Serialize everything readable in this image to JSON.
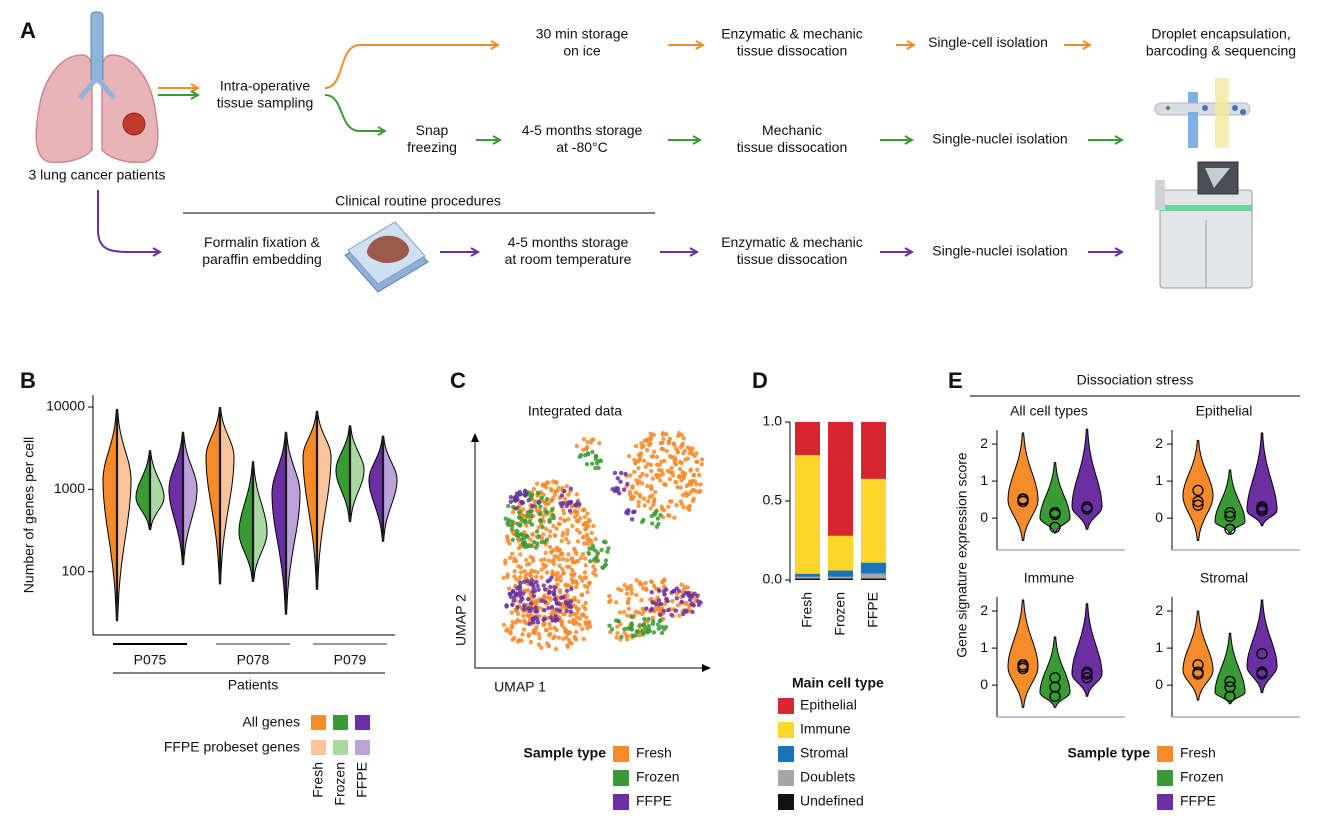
{
  "panel_a": {
    "label": "A",
    "patients": "3 lung cancer patients",
    "sampling": [
      "Intra-operative",
      "tissue sampling"
    ],
    "fresh_steps": [
      [
        "30 min storage",
        "on ice"
      ],
      [
        "Enzymatic & mechanic",
        "tissue dissocation"
      ],
      [
        "Single-cell isolation"
      ],
      [
        "Droplet encapsulation,",
        "barcoding & sequencing"
      ]
    ],
    "frozen_steps": [
      [
        "Snap",
        "freezing"
      ],
      [
        "4-5 months storage",
        "at -80°C"
      ],
      [
        "Mechanic",
        "tissue dissocation"
      ],
      [
        "Single-nuclei isolation"
      ]
    ],
    "clinical_label": "Clinical routine procedures",
    "ffpe_steps": [
      [
        "Formalin fixation &",
        "paraffin embedding"
      ],
      [
        "4-5 months storage",
        "at room temperature"
      ],
      [
        "Enzymatic & mechanic",
        "tissue dissocation"
      ],
      [
        "Single-nuclei isolation"
      ]
    ]
  },
  "chart_data": [
    {
      "type": "violin",
      "panel": "B",
      "ylabel": "Number of genes per cell",
      "xlabel": "Patients",
      "log_scale": true,
      "ylim": [
        17,
        14000
      ],
      "yticks": [
        100,
        1000,
        10000
      ],
      "categories": [
        "P075",
        "P078",
        "P079"
      ],
      "legend_rows": [
        "All genes",
        "FFPE probeset genes"
      ],
      "series": [
        {
          "name": "Fresh",
          "color": "#f68b2a",
          "light_color": "#fbc59c",
          "values": [
            [
              25,
              1300,
              9500
            ],
            [
              70,
              2500,
              10000
            ],
            [
              60,
              2500,
              9000
            ]
          ]
        },
        {
          "name": "Frozen",
          "color": "#3a9b35",
          "light_color": "#a9d8a0",
          "values": [
            [
              320,
              800,
              3000
            ],
            [
              75,
              300,
              2200
            ],
            [
              400,
              1700,
              6000
            ]
          ]
        },
        {
          "name": "FFPE",
          "color": "#6b2fa3",
          "light_color": "#bba3da",
          "values": [
            [
              120,
              1000,
              5000
            ],
            [
              30,
              900,
              5000
            ],
            [
              230,
              1300,
              4500
            ]
          ]
        }
      ]
    },
    {
      "type": "scatter",
      "panel": "C",
      "title": "Integrated data",
      "xlabel": "UMAP 1",
      "ylabel": "UMAP 2",
      "legend_title": "Sample type",
      "series": [
        {
          "name": "Fresh",
          "color": "#f68b2a"
        },
        {
          "name": "Frozen",
          "color": "#3a9b35"
        },
        {
          "name": "FFPE",
          "color": "#6b2fa3"
        }
      ]
    },
    {
      "type": "bar",
      "stacked": true,
      "panel": "D",
      "categories": [
        "Fresh",
        "Frozen",
        "FFPE"
      ],
      "ylim": [
        0,
        1
      ],
      "yticks": [
        {
          "value": 0,
          "label": "0.0"
        },
        {
          "value": 0.5,
          "label": "0.5"
        },
        {
          "value": 1,
          "label": "1.0"
        }
      ],
      "legend_title": "Main cell type",
      "series": [
        {
          "name": "Epithelial",
          "color": "#d7262f",
          "values": [
            0.21,
            0.72,
            0.36
          ]
        },
        {
          "name": "Immune",
          "color": "#fdd52b",
          "values": [
            0.75,
            0.22,
            0.53
          ]
        },
        {
          "name": "Stromal",
          "color": "#1b73b8",
          "values": [
            0.02,
            0.04,
            0.07
          ]
        },
        {
          "name": "Doublets",
          "color": "#a6a6a6",
          "values": [
            0.01,
            0.01,
            0.03
          ]
        },
        {
          "name": "Undefined",
          "color": "#111111",
          "values": [
            0.01,
            0.01,
            0.01
          ]
        }
      ]
    },
    {
      "type": "violin",
      "panel": "E",
      "title": "Dissociation stress",
      "ylabel": "Gene signature expression score",
      "ylim": [
        -0.86,
        2.38
      ],
      "yticks": [
        0,
        1,
        2
      ],
      "legend_title": "Sample type",
      "series": [
        {
          "name": "Fresh",
          "color": "#f68b2a"
        },
        {
          "name": "Frozen",
          "color": "#3a9b35"
        },
        {
          "name": "FFPE",
          "color": "#6b2fa3"
        }
      ],
      "panels": [
        {
          "title": "All cell types",
          "violins": [
            [
              -0.6,
              0.5,
              2.3
            ],
            [
              -0.4,
              0.0,
              1.5
            ],
            [
              -0.3,
              0.3,
              2.4
            ]
          ],
          "points": [
            [
              0.45,
              0.5,
              0.52
            ],
            [
              0.15,
              0.1,
              -0.25
            ],
            [
              0.25,
              0.3,
              0.3
            ]
          ]
        },
        {
          "title": "Epithelial",
          "violins": [
            [
              -0.6,
              0.6,
              2.1
            ],
            [
              -0.4,
              -0.1,
              1.3
            ],
            [
              -0.2,
              0.2,
              2.3
            ]
          ],
          "points": [
            [
              0.75,
              0.45,
              0.35
            ],
            [
              0.15,
              0.05,
              -0.3
            ],
            [
              0.25,
              0.2,
              0.3
            ]
          ]
        },
        {
          "title": "Immune",
          "violins": [
            [
              -0.6,
              0.5,
              2.3
            ],
            [
              -0.6,
              -0.2,
              1.3
            ],
            [
              -0.3,
              0.3,
              2.2
            ]
          ],
          "points": [
            [
              0.45,
              0.5,
              0.55
            ],
            [
              -0.3,
              0.2,
              -0.05
            ],
            [
              0.2,
              0.3,
              0.35
            ]
          ]
        },
        {
          "title": "Stromal",
          "violins": [
            [
              -0.4,
              0.4,
              2.0
            ],
            [
              -0.5,
              -0.2,
              1.4
            ],
            [
              -0.2,
              0.5,
              2.3
            ]
          ],
          "points": [
            [
              0.55,
              0.35,
              0.3
            ],
            [
              0.1,
              -0.05,
              -0.3
            ],
            [
              0.35,
              0.85,
              0.3
            ]
          ]
        }
      ]
    }
  ]
}
